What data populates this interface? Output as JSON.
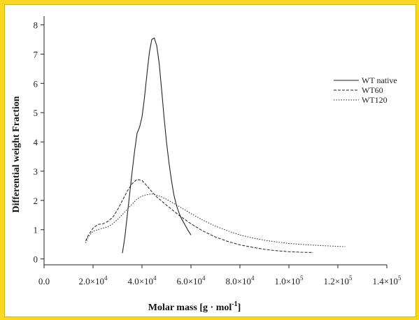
{
  "chart_data": {
    "type": "line",
    "title": "",
    "xlabel": "Molar mass [g · mol",
    "xlabel_sup": "-1",
    "xlabel_close": "]",
    "ylabel": "Differential weight Fraction",
    "xlim": [
      0,
      140000
    ],
    "ylim": [
      -0.2,
      8.3
    ],
    "x_ticks": [
      {
        "value": 0,
        "mant": "0.0",
        "exp": ""
      },
      {
        "value": 20000,
        "mant": "2.0×10",
        "exp": "4"
      },
      {
        "value": 40000,
        "mant": "4.0×10",
        "exp": "4"
      },
      {
        "value": 60000,
        "mant": "6.0×10",
        "exp": "4"
      },
      {
        "value": 80000,
        "mant": "8.0×10",
        "exp": "4"
      },
      {
        "value": 100000,
        "mant": "1.0×10",
        "exp": "5"
      },
      {
        "value": 120000,
        "mant": "1.2×10",
        "exp": "5"
      },
      {
        "value": 140000,
        "mant": "1.4×10",
        "exp": "5"
      }
    ],
    "y_ticks": [
      0,
      1,
      2,
      3,
      4,
      5,
      6,
      7,
      8
    ],
    "legend_position": "top-right",
    "grid": false,
    "series": [
      {
        "name": "WT native",
        "dash": "solid",
        "x": [
          32000,
          33000,
          34000,
          35000,
          36000,
          37000,
          38000,
          39000,
          40000,
          41000,
          42000,
          43000,
          44000,
          45000,
          46000,
          47000,
          48000,
          49000,
          50000,
          51000,
          52000,
          53000,
          54000,
          55000,
          56000,
          57000,
          58000,
          59000,
          60000
        ],
        "y": [
          0.2,
          0.75,
          1.5,
          2.25,
          3.0,
          3.7,
          4.3,
          4.5,
          4.85,
          5.5,
          6.3,
          7.05,
          7.5,
          7.55,
          7.3,
          6.7,
          5.8,
          4.85,
          4.0,
          3.3,
          2.7,
          2.2,
          1.85,
          1.6,
          1.4,
          1.25,
          1.1,
          0.95,
          0.82
        ]
      },
      {
        "name": "WT60",
        "dash": "dashed",
        "x": [
          17000,
          18000,
          20000,
          22000,
          24000,
          26000,
          28000,
          30000,
          32000,
          34000,
          36000,
          38000,
          40000,
          42000,
          44000,
          46000,
          48000,
          50000,
          55000,
          60000,
          65000,
          70000,
          75000,
          80000,
          85000,
          90000,
          95000,
          100000,
          105000,
          110000
        ],
        "y": [
          0.62,
          0.8,
          1.05,
          1.18,
          1.2,
          1.28,
          1.42,
          1.68,
          2.0,
          2.32,
          2.58,
          2.72,
          2.68,
          2.5,
          2.3,
          2.12,
          1.98,
          1.84,
          1.5,
          1.2,
          0.95,
          0.75,
          0.6,
          0.48,
          0.4,
          0.33,
          0.28,
          0.25,
          0.23,
          0.22
        ]
      },
      {
        "name": "WT120",
        "dash": "dotted",
        "x": [
          17000,
          18000,
          20000,
          22000,
          24000,
          26000,
          28000,
          30000,
          32000,
          34000,
          36000,
          38000,
          40000,
          42000,
          44000,
          46000,
          48000,
          50000,
          55000,
          60000,
          65000,
          70000,
          75000,
          80000,
          85000,
          90000,
          95000,
          100000,
          105000,
          110000,
          115000,
          120000,
          123000
        ],
        "y": [
          0.55,
          0.75,
          0.95,
          1.0,
          1.05,
          1.1,
          1.2,
          1.35,
          1.52,
          1.7,
          1.88,
          2.05,
          2.15,
          2.2,
          2.22,
          2.18,
          2.12,
          2.04,
          1.8,
          1.55,
          1.32,
          1.12,
          0.96,
          0.82,
          0.72,
          0.64,
          0.58,
          0.53,
          0.5,
          0.47,
          0.45,
          0.43,
          0.42
        ]
      }
    ]
  }
}
